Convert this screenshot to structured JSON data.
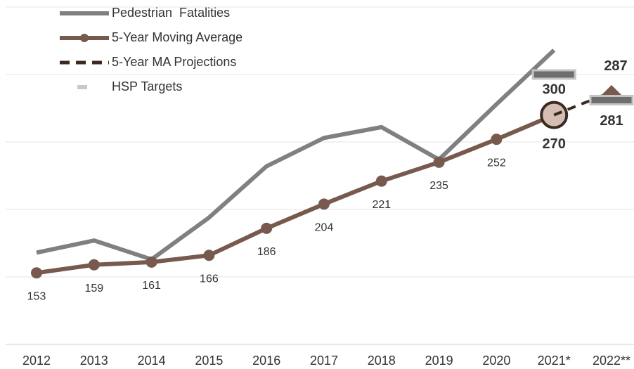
{
  "chart_data": {
    "type": "line",
    "categories": [
      "2012",
      "2013",
      "2014",
      "2015",
      "2016",
      "2017",
      "2018",
      "2019",
      "2020",
      "2021*",
      "2022**"
    ],
    "series": [
      {
        "name": "Pedestrian  Fatalities",
        "color": "#808080",
        "values": [
          168,
          177,
          163,
          194,
          232,
          253,
          261,
          237,
          278,
          318,
          null
        ]
      },
      {
        "name": "5-Year Moving Average",
        "color": "#775a4d",
        "markers": true,
        "values": [
          153,
          159,
          161,
          166,
          186,
          204,
          221,
          235,
          252,
          270,
          null
        ]
      },
      {
        "name": "5-Year MA Projections",
        "color": "#3a2a22",
        "dashed": true,
        "values": [
          null,
          null,
          null,
          null,
          null,
          null,
          null,
          null,
          null,
          270,
          287
        ]
      },
      {
        "name": "HSP Targets",
        "color": "#6e6e6e",
        "target": true,
        "values": [
          null,
          null,
          null,
          null,
          null,
          null,
          null,
          null,
          null,
          300,
          281
        ]
      }
    ],
    "ylim": [
      100,
      350
    ],
    "yticks": [
      100,
      150,
      200,
      250,
      300,
      350
    ],
    "grid": true
  }
}
